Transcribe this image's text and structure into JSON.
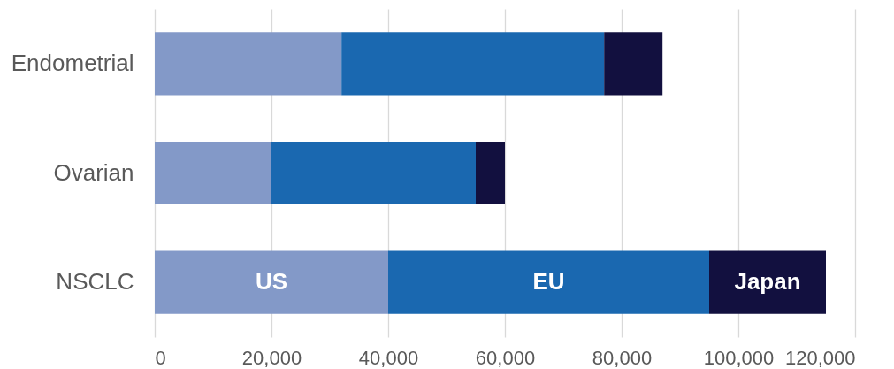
{
  "chart_data": {
    "type": "bar",
    "orientation": "horizontal",
    "stacked": true,
    "categories": [
      "Endometrial",
      "Ovarian",
      "NSCLC"
    ],
    "series": [
      {
        "name": "US",
        "color": "#8399c8",
        "values": [
          32000,
          20000,
          40000
        ]
      },
      {
        "name": "EU",
        "color": "#1a68b0",
        "values": [
          45000,
          35000,
          55000
        ]
      },
      {
        "name": "Japan",
        "color": "#12103f",
        "values": [
          10000,
          5000,
          20000
        ]
      }
    ],
    "xlim": [
      0,
      120000
    ],
    "xticks": [
      0,
      {
        "value": 20000,
        "label": "20,000"
      },
      {
        "value": 40000,
        "label": "40,000"
      },
      {
        "value": 60000,
        "label": "60,000"
      },
      {
        "value": 80000,
        "label": "80,000"
      },
      {
        "value": 100000,
        "label": "100,000"
      },
      {
        "value": 120000,
        "label": "120,000"
      }
    ],
    "grid": "x",
    "legend": false
  }
}
